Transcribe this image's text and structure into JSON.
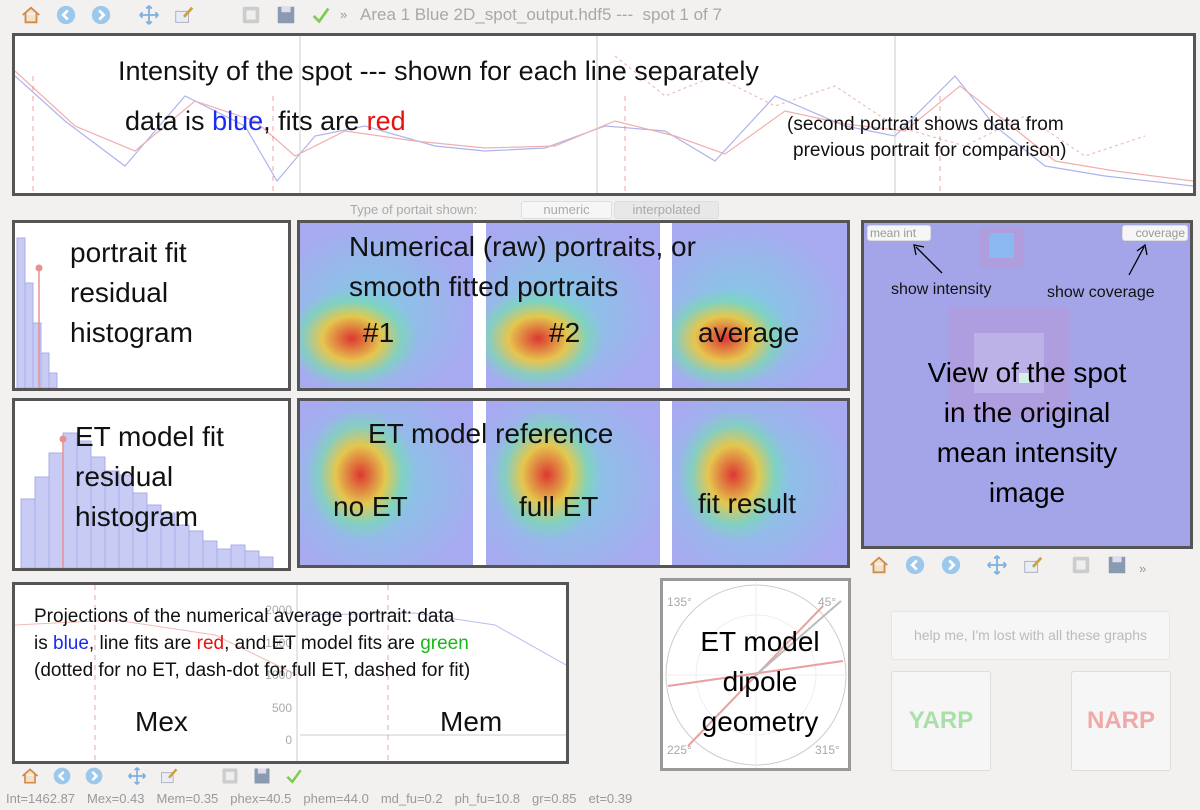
{
  "toolbar": {
    "title": "Area 1 Blue 2D_spot_output.hdf5 ---  spot 1 of 7",
    "overflow": "»"
  },
  "intensity_panel": {
    "title": "Intensity of the spot --- shown for each line separately",
    "legend": [
      "data is ",
      "blue",
      ", fits are ",
      "red"
    ],
    "note": [
      "(second portrait shows data from",
      "previous portrait for comparison)"
    ]
  },
  "portrait_selector": {
    "label": "Type of portait shown:",
    "options": [
      "numeric",
      "interpolated"
    ]
  },
  "portrait_histogram": {
    "lines": [
      "portrait fit",
      "residual",
      "histogram"
    ]
  },
  "portraits": {
    "lines": [
      "Numerical (raw) portraits, or",
      "smooth fitted portraits"
    ],
    "labels": [
      "#1",
      "#2",
      "average"
    ]
  },
  "spot_view": {
    "buttons": [
      "mean int",
      "coverage"
    ],
    "hints": [
      "show intensity",
      "show coverage"
    ],
    "lines": [
      "View of the spot",
      "in the original",
      "mean intensity",
      "image"
    ]
  },
  "et_histogram": {
    "lines": [
      "ET model fit",
      "residual",
      "histogram"
    ]
  },
  "et_reference": {
    "title": "ET model reference",
    "labels": [
      "no ET",
      "full ET",
      "fit result"
    ]
  },
  "projections": {
    "line1": "Projections of the numerical average portrait: data",
    "line2": [
      "is ",
      "blue",
      ", line fits are ",
      "red",
      ", and ET model fits are ",
      "green"
    ],
    "line3": "(dotted for no ET, dash-dot for full ET, dashed for fit)",
    "yticks": [
      "2000",
      "1500",
      "1000",
      "500",
      "0"
    ],
    "labels": [
      "Mex",
      "Mem"
    ]
  },
  "dipole": {
    "angles": [
      "135°",
      "45°",
      "225°",
      "315°"
    ],
    "lines": [
      "ET model",
      "dipole",
      "geometry"
    ]
  },
  "help_button": "help me, I'm lost with all these graphs",
  "yarp": "YARP",
  "narp": "NARP",
  "status": [
    "Int=1462.87",
    "Mex=0.43",
    "Mem=0.35",
    "phex=40.5",
    "phem=44.0",
    "md_fu=0.2",
    "ph_fu=10.8",
    "gr=0.85",
    "et=0.39"
  ]
}
